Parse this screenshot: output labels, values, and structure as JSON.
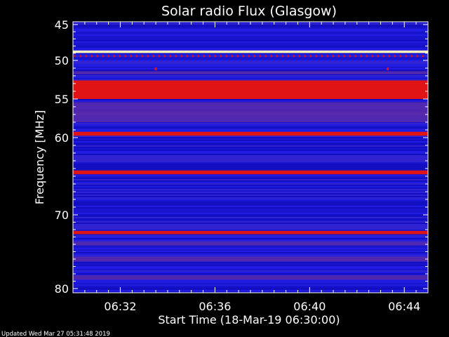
{
  "chart_data": {
    "type": "heatmap",
    "title": "Solar radio Flux (Glasgow)",
    "ylabel": "Frequency [MHz]",
    "xlabel": "Start Time (18-Mar-19 06:30:00)",
    "footer": "Updated Wed Mar 27 05:31:48 2019",
    "y_ticks": [
      "45",
      "50",
      "55",
      "60",
      "70",
      "80"
    ],
    "y_tick_values": [
      45,
      50,
      55,
      60,
      70,
      80
    ],
    "x_ticks": [
      "06:32",
      "06:36",
      "06:40",
      "06:44"
    ],
    "x_tick_values_min": [
      2,
      6,
      10,
      14
    ],
    "x_range_min": [
      0,
      15
    ],
    "y_range_mhz": [
      45,
      80
    ],
    "y_axis_reversed": true,
    "colors": {
      "background": "#000000",
      "low": "#1a14d8",
      "mid": "#5a2aa8",
      "high": "#e01414",
      "saturated": "#fff0c0"
    },
    "bands": [
      {
        "mhz": 48.8,
        "width_mhz": 0.35,
        "level": "saturated"
      },
      {
        "mhz": 49.4,
        "width_mhz": 0.3,
        "level": "dotted"
      },
      {
        "mhz": 51.6,
        "width_mhz": 0.4,
        "level": "mid"
      },
      {
        "mhz": 53.8,
        "width_mhz": 2.4,
        "level": "high"
      },
      {
        "mhz": 56.2,
        "width_mhz": 1.6,
        "level": "mid"
      },
      {
        "mhz": 57.4,
        "width_mhz": 1.2,
        "level": "mid"
      },
      {
        "mhz": 59.5,
        "width_mhz": 0.5,
        "level": "high"
      },
      {
        "mhz": 64.5,
        "width_mhz": 0.5,
        "level": "high"
      },
      {
        "mhz": 72.4,
        "width_mhz": 0.45,
        "level": "high"
      },
      {
        "mhz": 73.9,
        "width_mhz": 0.5,
        "level": "mid"
      },
      {
        "mhz": 76.0,
        "width_mhz": 0.6,
        "level": "mid"
      },
      {
        "mhz": 78.5,
        "width_mhz": 0.6,
        "level": "mid"
      }
    ],
    "markers": [
      {
        "time_min": 3.5,
        "mhz": 51.1
      },
      {
        "time_min": 13.3,
        "mhz": 51.1
      }
    ]
  }
}
